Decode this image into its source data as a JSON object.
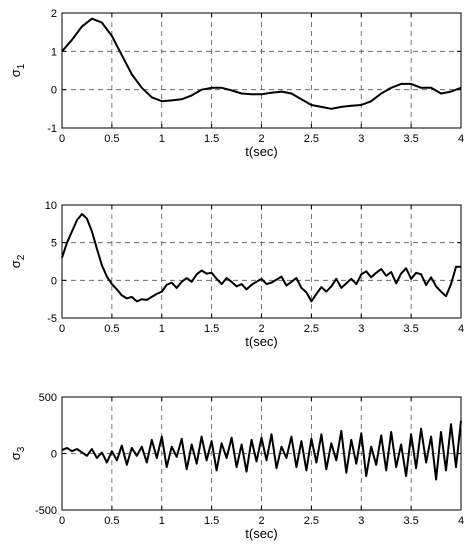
{
  "chart_data": [
    {
      "type": "line",
      "ylabel": "σ",
      "ylabel_sub": "1",
      "xlabel": "t(sec)",
      "xlim": [
        0,
        4
      ],
      "ylim": [
        -1,
        2
      ],
      "xticks": [
        0,
        0.5,
        1,
        1.5,
        2,
        2.5,
        3,
        3.5,
        4
      ],
      "yticks": [
        -1,
        0,
        1,
        2
      ],
      "grid": true,
      "series": [
        {
          "x": [
            0,
            0.1,
            0.2,
            0.3,
            0.4,
            0.5,
            0.6,
            0.7,
            0.8,
            0.9,
            1.0,
            1.1,
            1.2,
            1.3,
            1.4,
            1.5,
            1.6,
            1.7,
            1.8,
            1.9,
            2.0,
            2.1,
            2.2,
            2.3,
            2.4,
            2.5,
            2.6,
            2.7,
            2.8,
            2.9,
            3.0,
            3.1,
            3.2,
            3.3,
            3.4,
            3.5,
            3.6,
            3.7,
            3.8,
            3.9,
            4.0
          ],
          "values": [
            1.0,
            1.3,
            1.65,
            1.85,
            1.75,
            1.4,
            0.9,
            0.4,
            0.05,
            -0.2,
            -0.3,
            -0.28,
            -0.25,
            -0.15,
            0.0,
            0.05,
            0.05,
            -0.02,
            -0.1,
            -0.12,
            -0.12,
            -0.08,
            -0.05,
            -0.1,
            -0.25,
            -0.4,
            -0.45,
            -0.5,
            -0.45,
            -0.42,
            -0.4,
            -0.3,
            -0.1,
            0.05,
            0.15,
            0.15,
            0.05,
            0.05,
            -0.1,
            -0.05,
            0.05
          ]
        }
      ]
    },
    {
      "type": "line",
      "ylabel": "σ",
      "ylabel_sub": "2",
      "xlabel": "t(sec)",
      "xlim": [
        0,
        4
      ],
      "ylim": [
        -5,
        10
      ],
      "xticks": [
        0,
        0.5,
        1,
        1.5,
        2,
        2.5,
        3,
        3.5,
        4
      ],
      "yticks": [
        -5,
        0,
        5,
        10
      ],
      "grid": true,
      "series": [
        {
          "x": [
            0,
            0.05,
            0.1,
            0.15,
            0.2,
            0.25,
            0.3,
            0.35,
            0.4,
            0.45,
            0.5,
            0.55,
            0.6,
            0.65,
            0.7,
            0.75,
            0.8,
            0.85,
            0.9,
            0.95,
            1.0,
            1.05,
            1.1,
            1.15,
            1.2,
            1.25,
            1.3,
            1.35,
            1.4,
            1.45,
            1.5,
            1.55,
            1.6,
            1.65,
            1.7,
            1.75,
            1.8,
            1.85,
            1.9,
            1.95,
            2.0,
            2.05,
            2.1,
            2.15,
            2.2,
            2.25,
            2.3,
            2.35,
            2.4,
            2.45,
            2.5,
            2.55,
            2.6,
            2.65,
            2.7,
            2.75,
            2.8,
            2.85,
            2.9,
            2.95,
            3.0,
            3.05,
            3.1,
            3.15,
            3.2,
            3.25,
            3.3,
            3.35,
            3.4,
            3.45,
            3.5,
            3.55,
            3.6,
            3.65,
            3.7,
            3.75,
            3.8,
            3.85,
            3.9,
            3.95,
            4.0
          ],
          "values": [
            3.0,
            5.0,
            6.5,
            8.0,
            8.8,
            8.2,
            6.5,
            4.2,
            2.0,
            0.5,
            -0.5,
            -1.2,
            -2.0,
            -2.4,
            -2.2,
            -2.8,
            -2.5,
            -2.6,
            -2.2,
            -1.8,
            -1.5,
            -0.6,
            -0.3,
            -1.0,
            -0.2,
            0.3,
            -0.2,
            0.8,
            1.3,
            0.9,
            1.0,
            0.2,
            -0.5,
            0.3,
            -0.2,
            -0.8,
            -0.5,
            -1.2,
            -0.6,
            -0.2,
            0.2,
            -0.5,
            -0.3,
            0.1,
            0.5,
            -0.7,
            -0.2,
            0.3,
            -1.0,
            -1.6,
            -2.8,
            -1.8,
            -0.9,
            -1.5,
            -0.8,
            0.2,
            -1.0,
            -0.4,
            0.2,
            -0.5,
            0.8,
            1.2,
            0.4,
            1.0,
            1.5,
            0.6,
            1.1,
            -0.4,
            0.9,
            1.6,
            0.2,
            1.0,
            0.8,
            -0.6,
            0.4,
            -0.8,
            -1.5,
            -2.1,
            -0.5,
            1.8,
            1.8
          ]
        }
      ]
    },
    {
      "type": "line",
      "ylabel": "σ",
      "ylabel_sub": "3",
      "xlabel": "t(sec)",
      "xlim": [
        0,
        4
      ],
      "ylim": [
        -500,
        500
      ],
      "xticks": [
        0,
        0.5,
        1,
        1.5,
        2,
        2.5,
        3,
        3.5,
        4
      ],
      "yticks": [
        -500,
        0,
        500
      ],
      "grid": true,
      "series": [
        {
          "x": [
            0,
            0.05,
            0.1,
            0.15,
            0.2,
            0.25,
            0.3,
            0.35,
            0.4,
            0.45,
            0.5,
            0.55,
            0.6,
            0.65,
            0.7,
            0.75,
            0.8,
            0.85,
            0.9,
            0.95,
            1.0,
            1.05,
            1.1,
            1.15,
            1.2,
            1.25,
            1.3,
            1.35,
            1.4,
            1.45,
            1.5,
            1.55,
            1.6,
            1.65,
            1.7,
            1.75,
            1.8,
            1.85,
            1.9,
            1.95,
            2.0,
            2.05,
            2.1,
            2.15,
            2.2,
            2.25,
            2.3,
            2.35,
            2.4,
            2.45,
            2.5,
            2.55,
            2.6,
            2.65,
            2.7,
            2.75,
            2.8,
            2.85,
            2.9,
            2.95,
            3.0,
            3.05,
            3.1,
            3.15,
            3.2,
            3.25,
            3.3,
            3.35,
            3.4,
            3.45,
            3.5,
            3.55,
            3.6,
            3.65,
            3.7,
            3.75,
            3.8,
            3.85,
            3.9,
            3.95,
            4.0
          ],
          "values": [
            30,
            50,
            20,
            40,
            10,
            -20,
            40,
            -40,
            10,
            -80,
            20,
            -60,
            70,
            -100,
            50,
            -20,
            60,
            -80,
            120,
            -40,
            150,
            -120,
            60,
            -30,
            130,
            -140,
            80,
            -90,
            150,
            -60,
            110,
            -150,
            90,
            -40,
            140,
            -120,
            80,
            -160,
            120,
            -70,
            140,
            -60,
            170,
            -130,
            60,
            -40,
            150,
            -120,
            110,
            -150,
            130,
            -80,
            170,
            -140,
            90,
            -60,
            200,
            -170,
            120,
            -90,
            180,
            -200,
            60,
            -100,
            160,
            -150,
            190,
            -120,
            80,
            -200,
            170,
            -130,
            220,
            -80,
            150,
            -230,
            190,
            -150,
            260,
            -120,
            290
          ]
        }
      ]
    }
  ]
}
